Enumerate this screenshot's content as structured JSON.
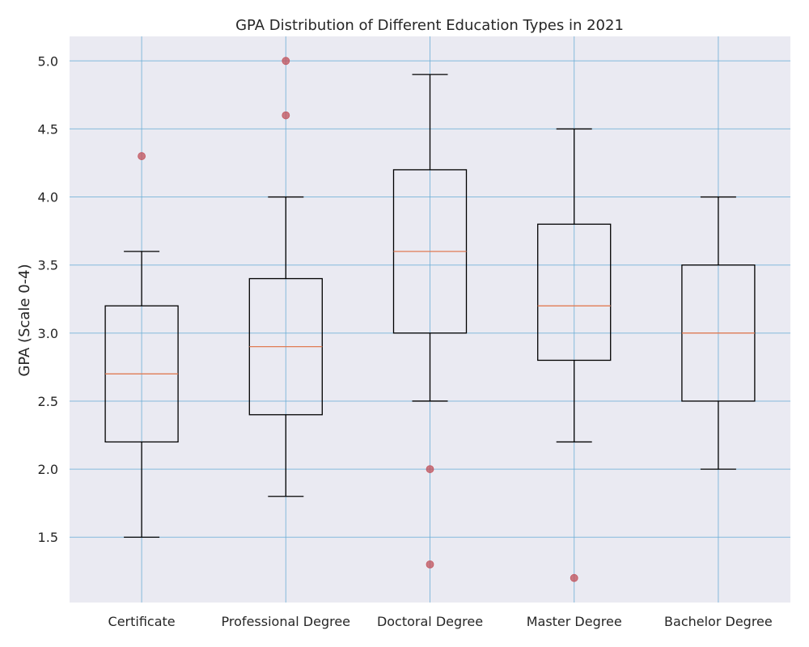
{
  "chart_data": {
    "type": "boxplot",
    "title": "GPA Distribution of Different Education Types in 2021",
    "xlabel": "",
    "ylabel": "GPA (Scale 0-4)",
    "ylim": [
      1.02,
      5.18
    ],
    "yticks": [
      "1.5",
      "2.0",
      "2.5",
      "3.0",
      "3.5",
      "4.0",
      "4.5",
      "5.0"
    ],
    "grid": true,
    "categories": [
      "Certificate",
      "Professional Degree",
      "Doctoral Degree",
      "Master Degree",
      "Bachelor Degree"
    ],
    "boxes": [
      {
        "category": "Certificate",
        "whisker_low": 1.5,
        "q1": 2.2,
        "median": 2.7,
        "q3": 3.2,
        "whisker_high": 3.6,
        "outliers": [
          4.3
        ]
      },
      {
        "category": "Professional Degree",
        "whisker_low": 1.8,
        "q1": 2.4,
        "median": 2.9,
        "q3": 3.4,
        "whisker_high": 4.0,
        "outliers": [
          5.0,
          4.6
        ]
      },
      {
        "category": "Doctoral Degree",
        "whisker_low": 2.5,
        "q1": 3.0,
        "median": 3.6,
        "q3": 4.2,
        "whisker_high": 4.9,
        "outliers": [
          2.0,
          1.3
        ]
      },
      {
        "category": "Master Degree",
        "whisker_low": 2.2,
        "q1": 2.8,
        "median": 3.2,
        "q3": 3.8,
        "whisker_high": 4.5,
        "outliers": [
          1.2
        ]
      },
      {
        "category": "Bachelor Degree",
        "whisker_low": 2.0,
        "q1": 2.5,
        "median": 3.0,
        "q3": 3.5,
        "whisker_high": 4.0,
        "outliers": []
      }
    ],
    "colors": {
      "background": "#eaeaf2",
      "grid": "#6baed6",
      "box": "#000000",
      "median": "#e07b54",
      "outlier": "#c0505a"
    }
  }
}
